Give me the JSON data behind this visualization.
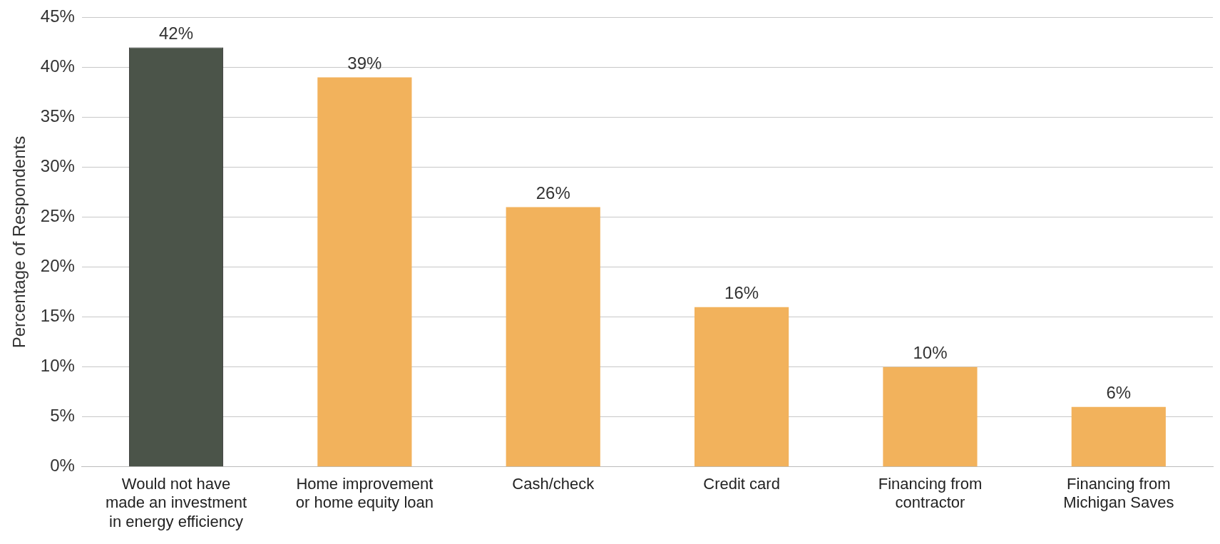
{
  "chart_data": {
    "type": "bar",
    "ylabel": "Percentage of Respondents",
    "categories": [
      "Would not have made an investment in energy efficiency",
      "Home improvement or home equity loan",
      "Cash/check",
      "Credit card",
      "Financing from contractor",
      "Financing from Michigan Saves"
    ],
    "values": [
      42,
      39,
      26,
      16,
      10,
      6
    ],
    "colors": [
      "#4b5449",
      "#f2b25c",
      "#f2b25c",
      "#f2b25c",
      "#f2b25c",
      "#f2b25c"
    ],
    "value_labels": [
      "42%",
      "39%",
      "26%",
      "16%",
      "10%",
      "6%"
    ],
    "ylim": [
      0,
      45
    ],
    "yticks": [
      {
        "value": 0,
        "label": "0%"
      },
      {
        "value": 5,
        "label": "5%"
      },
      {
        "value": 10,
        "label": "10%"
      },
      {
        "value": 15,
        "label": "15%"
      },
      {
        "value": 20,
        "label": "20%"
      },
      {
        "value": 25,
        "label": "25%"
      },
      {
        "value": 30,
        "label": "30%"
      },
      {
        "value": 35,
        "label": "35%"
      },
      {
        "value": 40,
        "label": "40%"
      },
      {
        "value": 45,
        "label": "45%"
      }
    ],
    "grid": "y",
    "legend": false
  }
}
